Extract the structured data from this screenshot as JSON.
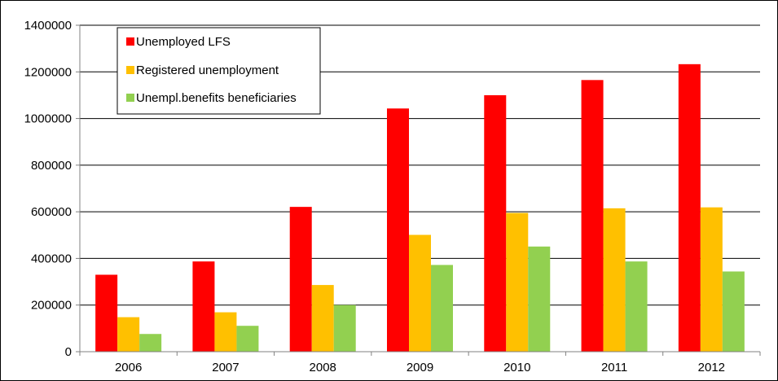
{
  "chart_data": {
    "type": "bar",
    "categories": [
      "2006",
      "2007",
      "2008",
      "2009",
      "2010",
      "2011",
      "2012"
    ],
    "series": [
      {
        "name": "Unemployed LFS",
        "color": "#ff0000",
        "values": [
          330000,
          387000,
          621000,
          1043000,
          1100000,
          1165000,
          1233000
        ]
      },
      {
        "name": "Registered unemployment",
        "color": "#ffc000",
        "values": [
          148000,
          169000,
          286000,
          501000,
          595000,
          615000,
          619000
        ]
      },
      {
        "name": "Unempl.benefits beneficiaries",
        "color": "#92d050",
        "values": [
          76000,
          111000,
          200000,
          372000,
          451000,
          387000,
          344000
        ]
      }
    ],
    "yticks": [
      "0",
      "200000",
      "400000",
      "600000",
      "800000",
      "1000000",
      "1200000",
      "1400000"
    ],
    "ylim": [
      0,
      1400000
    ],
    "grid": true,
    "legend_position": "top-left"
  }
}
